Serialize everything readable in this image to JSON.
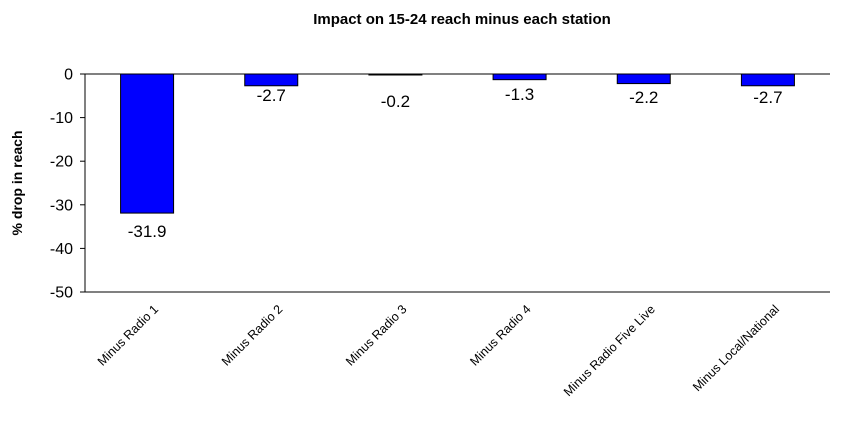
{
  "chart_data": {
    "type": "bar",
    "title": "Impact on 15-24 reach minus each station",
    "xlabel": "",
    "ylabel": "% drop in reach",
    "categories": [
      "Minus Radio 1",
      "Minus Radio 2",
      "Minus Radio 3",
      "Minus Radio 4",
      "Minus Radio Five Live",
      "Minus Local/National"
    ],
    "values": [
      -31.9,
      -2.7,
      -0.2,
      -1.3,
      -2.2,
      -2.7
    ],
    "data_labels": [
      "-31.9",
      "-2.7",
      "-0.2",
      "-1.3",
      "-2.2",
      "-2.7"
    ],
    "ylim": [
      -50,
      0
    ],
    "yticks": [
      0,
      -10,
      -20,
      -30,
      -40,
      -50
    ],
    "ytick_labels": [
      "0",
      "-10",
      "-20",
      "-30",
      "-40",
      "-50"
    ],
    "grid": false,
    "legend": "none",
    "bar_color": "#0000FF",
    "bar_outline": "#000000"
  }
}
